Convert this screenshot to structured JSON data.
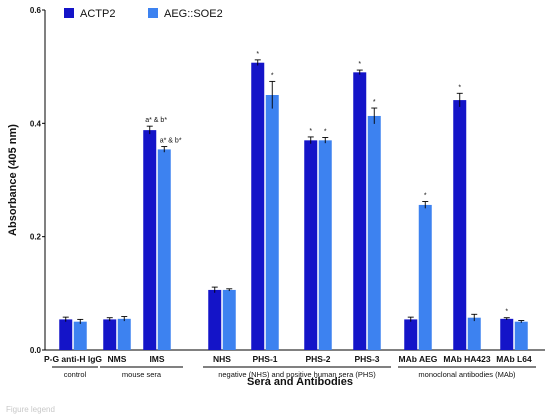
{
  "footer_text": "Figure legend",
  "chart_data": {
    "type": "bar",
    "title": "",
    "xlabel": "Sera and Antibodies",
    "ylabel": "Absorbance (405 nm)",
    "ylim": [
      0,
      0.6
    ],
    "yticks": [
      "0.0",
      "0.2",
      "0.4",
      "0.6"
    ],
    "grid": false,
    "legend_position": "top-left",
    "categories": [
      "P-G anti-H IgG",
      "NMS",
      "IMS",
      "NHS",
      "PHS-1",
      "PHS-2",
      "PHS-3",
      "MAb AEG",
      "MAb HA423",
      "MAb L64"
    ],
    "series": [
      {
        "name": "ACTP2",
        "color": "#1414c8",
        "values": [
          0.054,
          0.054,
          0.388,
          0.106,
          0.507,
          0.37,
          0.49,
          0.054,
          0.441,
          0.055
        ],
        "errors": [
          0.004,
          0.003,
          0.007,
          0.005,
          0.005,
          0.006,
          0.004,
          0.004,
          0.012,
          0.002
        ],
        "annotations": [
          "",
          "",
          "a* & b*",
          "",
          "*",
          "*",
          "*",
          "",
          "*",
          "*"
        ]
      },
      {
        "name": "AEG::SOE2",
        "color": "#3d82f0",
        "values": [
          0.05,
          0.055,
          0.354,
          0.106,
          0.45,
          0.37,
          0.413,
          0.256,
          0.057,
          0.05
        ],
        "errors": [
          0.004,
          0.004,
          0.005,
          0.002,
          0.024,
          0.005,
          0.014,
          0.006,
          0.006,
          0.002
        ],
        "annotations": [
          "",
          "",
          "a* & b*",
          "",
          "*",
          "*",
          "*",
          "*",
          "",
          ""
        ]
      }
    ],
    "groups": [
      {
        "label": "control",
        "from": 0,
        "to": 0
      },
      {
        "label": "mouse sera",
        "from": 1,
        "to": 2
      },
      {
        "label": "negative (NHS) and positive human sera (PHS)",
        "from": 3,
        "to": 6
      },
      {
        "label": "monoclonal antibodies (MAb)",
        "from": 7,
        "to": 9
      }
    ]
  }
}
